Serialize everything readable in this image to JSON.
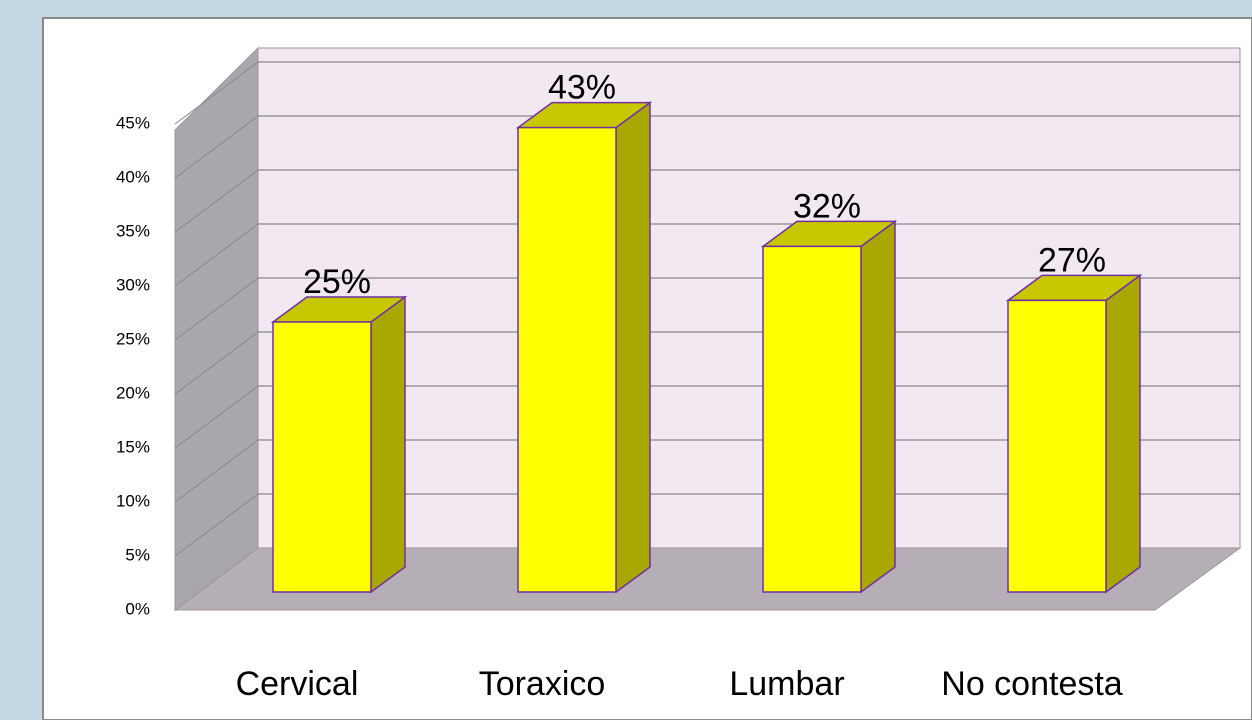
{
  "chart_data": {
    "type": "bar3d",
    "categories": [
      "Cervical",
      "Toraxico",
      "Lumbar",
      "No contesta"
    ],
    "values": [
      25,
      43,
      32,
      27
    ],
    "value_labels": [
      "25%",
      "43%",
      "32%",
      "27%"
    ],
    "color": "#ffff00",
    "ylim": [
      0,
      45
    ],
    "yticks": [
      {
        "value": 0,
        "label": "0%"
      },
      {
        "value": 5,
        "label": "5%"
      },
      {
        "value": 10,
        "label": "10%"
      },
      {
        "value": 15,
        "label": "15%"
      },
      {
        "value": 20,
        "label": "20%"
      },
      {
        "value": 25,
        "label": "25%"
      },
      {
        "value": 30,
        "label": "30%"
      },
      {
        "value": 35,
        "label": "35%"
      },
      {
        "value": 40,
        "label": "40%"
      },
      {
        "value": 45,
        "label": "45%"
      }
    ],
    "grid": true
  }
}
